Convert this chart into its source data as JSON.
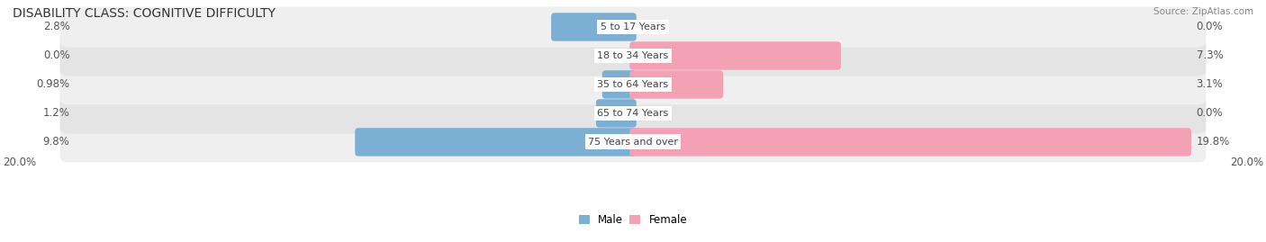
{
  "title": "DISABILITY CLASS: COGNITIVE DIFFICULTY",
  "source": "Source: ZipAtlas.com",
  "categories": [
    "5 to 17 Years",
    "18 to 34 Years",
    "35 to 64 Years",
    "65 to 74 Years",
    "75 Years and over"
  ],
  "male_values": [
    2.8,
    0.0,
    0.98,
    1.2,
    9.8
  ],
  "female_values": [
    0.0,
    7.3,
    3.1,
    0.0,
    19.8
  ],
  "male_labels": [
    "2.8%",
    "0.0%",
    "0.98%",
    "1.2%",
    "9.8%"
  ],
  "female_labels": [
    "0.0%",
    "7.3%",
    "3.1%",
    "0.0%",
    "19.8%"
  ],
  "male_color": "#7bafd4",
  "female_color": "#f4a0b5",
  "row_bg_colors": [
    "#efefef",
    "#e4e4e4",
    "#efefef",
    "#e4e4e4",
    "#efefef"
  ],
  "max_value": 20.0,
  "axis_label_left": "20.0%",
  "axis_label_right": "20.0%",
  "legend_male": "Male",
  "legend_female": "Female",
  "title_fontsize": 10,
  "label_fontsize": 8.5,
  "category_fontsize": 8.0
}
